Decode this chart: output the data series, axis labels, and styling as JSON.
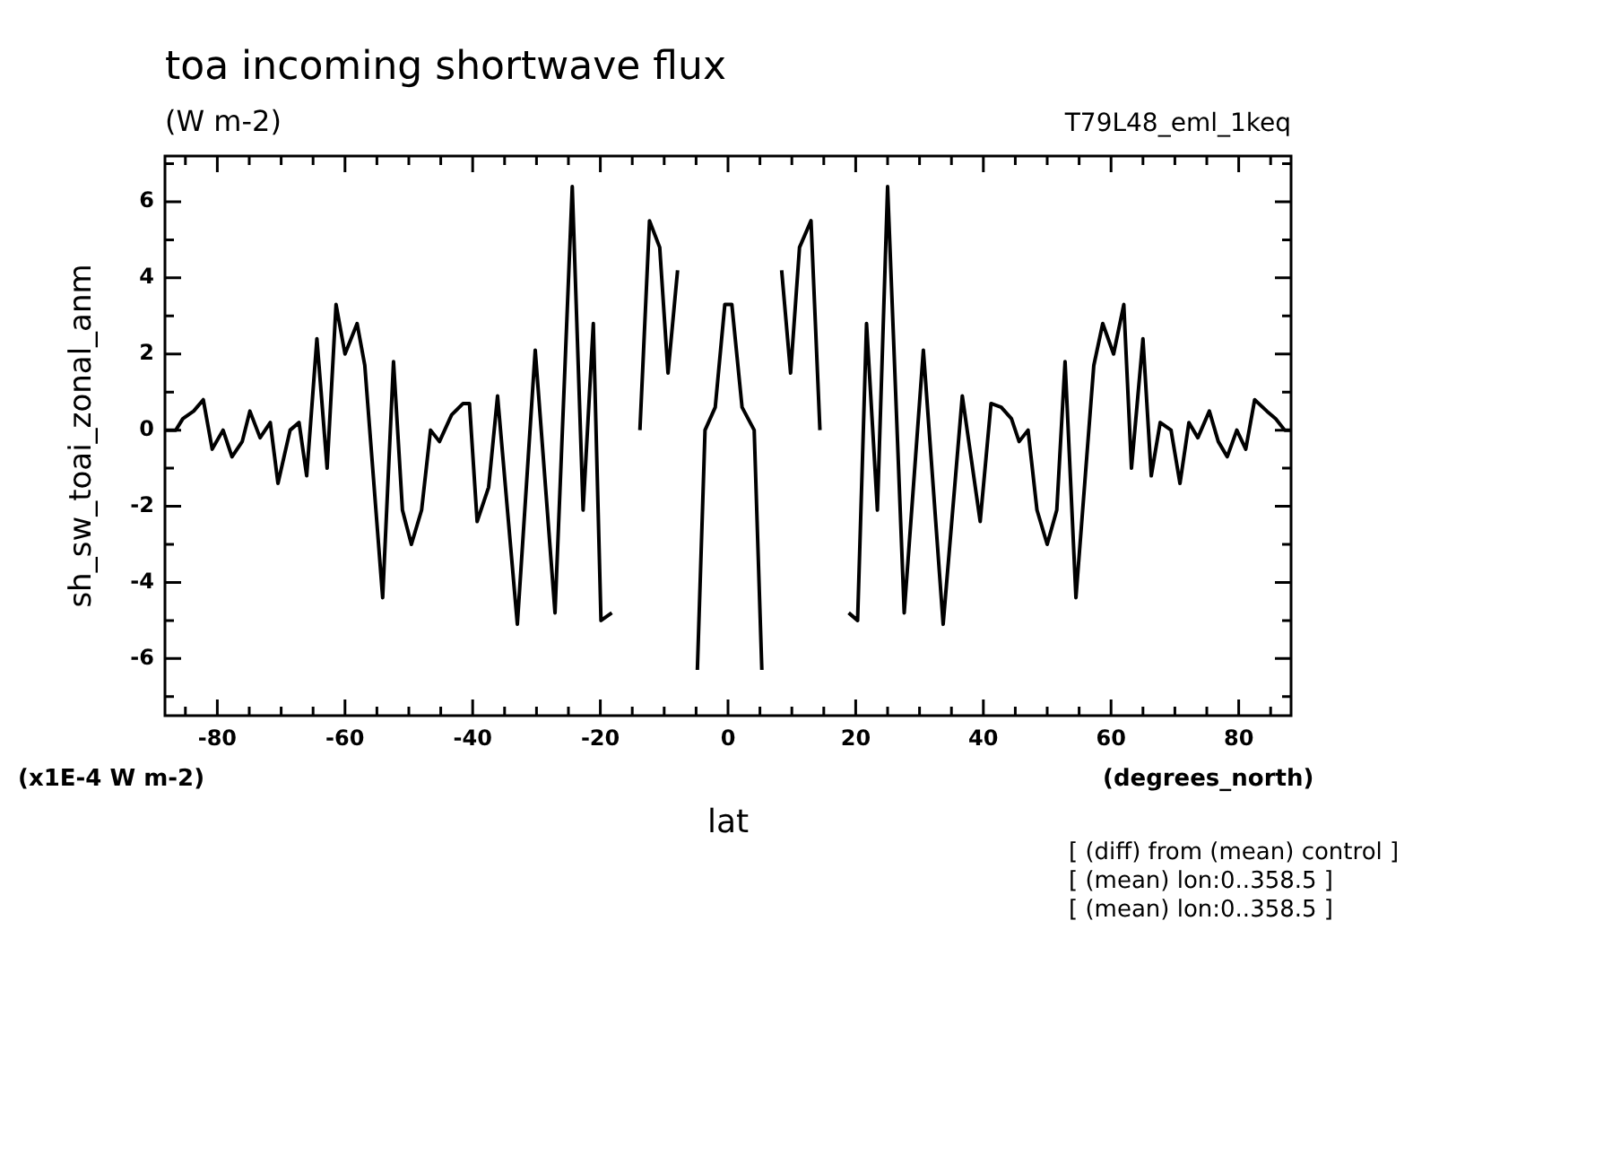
{
  "chart_data": {
    "type": "line",
    "title": "toa incoming shortwave flux",
    "subtitle": "(W m-2)",
    "xlabel": "lat",
    "ylabel": "sh_sw_toai_zonal_anm",
    "annotations": [
      "T79L48_eml_1keq",
      "(x1E-4 W m-2)",
      "(degrees_north)",
      "[ (diff) from (mean) control ]",
      "[ (mean) lon:0..358.5 ]",
      "[ (mean) lon:0..358.5 ]"
    ],
    "series": [
      {
        "color": "#000000",
        "x": [
          -88.2,
          -86.5,
          -85.4,
          -83.7,
          -82.2,
          -80.8,
          -79.1,
          -77.7,
          -76.1,
          -74.9,
          -73.3,
          -71.7,
          -70.5,
          -68.6,
          -67.2,
          -66.0,
          -64.4,
          -62.8,
          -61.4,
          -60.0,
          -58.1,
          -56.9,
          -54.1,
          -52.4,
          -51.0,
          -49.6,
          -48.0,
          -46.6,
          -45.2,
          -43.3,
          -41.5,
          -40.5,
          -39.3,
          -37.5,
          -36.1,
          -33.0,
          -30.2,
          -27.1,
          -24.4,
          -22.7,
          -21.1,
          -19.9,
          -18.2,
          -16.6,
          -13.8,
          -12.3,
          -10.7,
          -9.4,
          -7.9,
          -6.4,
          -4.8,
          -3.6,
          -2.0,
          -0.5,
          0.6,
          2.2,
          4.1,
          5.3,
          6.7,
          8.4,
          9.8,
          11.2,
          13.0,
          14.4,
          17.0,
          18.9,
          20.3,
          21.7,
          23.4,
          25.0,
          27.6,
          30.6,
          33.7,
          36.7,
          39.5,
          41.2,
          42.8,
          44.4,
          45.6,
          47.0,
          48.4,
          50.0,
          51.5,
          52.8,
          54.5,
          57.3,
          58.7,
          60.4,
          62.0,
          63.2,
          65.0,
          66.3,
          67.7,
          69.4,
          70.8,
          72.2,
          73.6,
          75.4,
          76.8,
          78.2,
          79.7,
          81.1,
          82.5,
          84.4,
          85.8,
          87.2,
          88.2
        ],
        "values": [
          0,
          0,
          0.3,
          0.5,
          0.8,
          -0.5,
          0,
          -0.7,
          -0.3,
          0.5,
          -0.2,
          0.2,
          -1.4,
          0,
          0.2,
          -1.2,
          2.4,
          -1.0,
          3.3,
          2.0,
          2.8,
          1.7,
          -4.4,
          1.8,
          -2.1,
          -3.0,
          -2.1,
          0,
          -0.3,
          0.4,
          0.7,
          0.7,
          -2.4,
          -1.5,
          0.9,
          -5.1,
          2.1,
          -4.8,
          6.4,
          -2.1,
          2.8,
          -5.0,
          -4.8,
          null,
          0,
          5.5,
          4.8,
          1.5,
          4.2,
          null,
          -6.3,
          0,
          0.6,
          3.3,
          3.3,
          0.6,
          0,
          -6.3,
          null,
          4.2,
          1.5,
          4.8,
          5.5,
          0,
          null,
          -4.8,
          -5.0,
          2.8,
          -2.1,
          6.4,
          -4.8,
          2.1,
          -5.1,
          0.9,
          -2.4,
          0.7,
          0.6,
          0.3,
          -0.3,
          0,
          -2.1,
          -3.0,
          -2.1,
          1.8,
          -4.4,
          1.7,
          2.8,
          2.0,
          3.3,
          -1.0,
          2.4,
          -1.2,
          0.2,
          0,
          -1.4,
          0.2,
          -0.2,
          0.5,
          -0.3,
          -0.7,
          0,
          -0.5,
          0.8,
          0.5,
          0.3,
          0,
          0
        ]
      }
    ],
    "xlim": [
      -88.2,
      88.2
    ],
    "xticks": [
      {
        "value": -85,
        "label": null
      },
      -80,
      {
        "value": -75,
        "label": null
      },
      {
        "value": -70,
        "label": null
      },
      {
        "value": -65,
        "label": null
      },
      -60,
      {
        "value": -55,
        "label": null
      },
      {
        "value": -50,
        "label": null
      },
      {
        "value": -45,
        "label": null
      },
      -40,
      {
        "value": -35,
        "label": null
      },
      {
        "value": -30,
        "label": null
      },
      {
        "value": -25,
        "label": null
      },
      -20,
      {
        "value": -15,
        "label": null
      },
      {
        "value": -10,
        "label": null
      },
      {
        "value": -5,
        "label": null
      },
      0,
      {
        "value": 5,
        "label": null
      },
      {
        "value": 10,
        "label": null
      },
      {
        "value": 15,
        "label": null
      },
      20,
      {
        "value": 25,
        "label": null
      },
      {
        "value": 30,
        "label": null
      },
      {
        "value": 35,
        "label": null
      },
      40,
      {
        "value": 45,
        "label": null
      },
      {
        "value": 50,
        "label": null
      },
      {
        "value": 55,
        "label": null
      },
      60,
      {
        "value": 65,
        "label": null
      },
      {
        "value": 70,
        "label": null
      },
      {
        "value": 75,
        "label": null
      },
      80,
      {
        "value": 85,
        "label": null
      }
    ],
    "ylim": [
      -7.5,
      7.2
    ],
    "yticks": [
      {
        "value": -7,
        "label": null
      },
      -6,
      {
        "value": -5,
        "label": null
      },
      -4,
      {
        "value": -3,
        "label": null
      },
      -2,
      {
        "value": -1,
        "label": null
      },
      0,
      {
        "value": 1,
        "label": null
      },
      2,
      {
        "value": 3,
        "label": null
      },
      4,
      {
        "value": 5,
        "label": null
      },
      6,
      {
        "value": 7,
        "label": null
      }
    ],
    "marker": "none",
    "line_style": "solid",
    "legend": false,
    "grid": false
  }
}
